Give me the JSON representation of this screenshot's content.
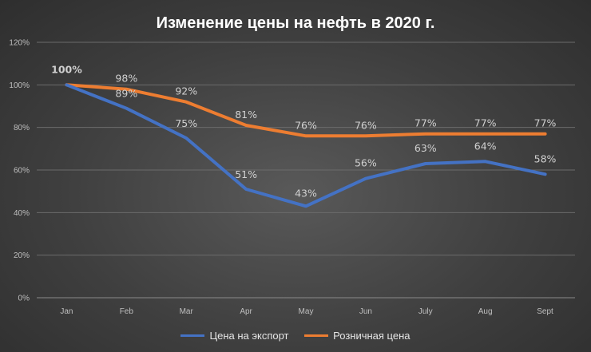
{
  "chart_data": {
    "type": "line",
    "title": "Изменение цены на нефть в 2020 г.",
    "categories": [
      "Jan",
      "Feb",
      "Mar",
      "Apr",
      "May",
      "Jun",
      "July",
      "Aug",
      "Sept"
    ],
    "y_ticks": [
      "0%",
      "20%",
      "40%",
      "60%",
      "80%",
      "100%",
      "120%"
    ],
    "ylim": [
      0,
      120
    ],
    "grid": true,
    "legend_position": "bottom",
    "series": [
      {
        "name": "Цена на экспорт",
        "color": "#4472C4",
        "values": [
          100,
          89,
          75,
          51,
          43,
          56,
          63,
          64,
          58
        ],
        "labels": [
          "100%",
          "89%",
          "75%",
          "51%",
          "43%",
          "56%",
          "63%",
          "64%",
          "58%"
        ]
      },
      {
        "name": "Розничная цена",
        "color": "#ED7D31",
        "values": [
          100,
          98,
          92,
          81,
          76,
          76,
          77,
          77,
          77
        ],
        "labels": [
          "",
          "98%",
          "92%",
          "81%",
          "76%",
          "76%",
          "77%",
          "77%",
          "77%"
        ]
      }
    ]
  }
}
